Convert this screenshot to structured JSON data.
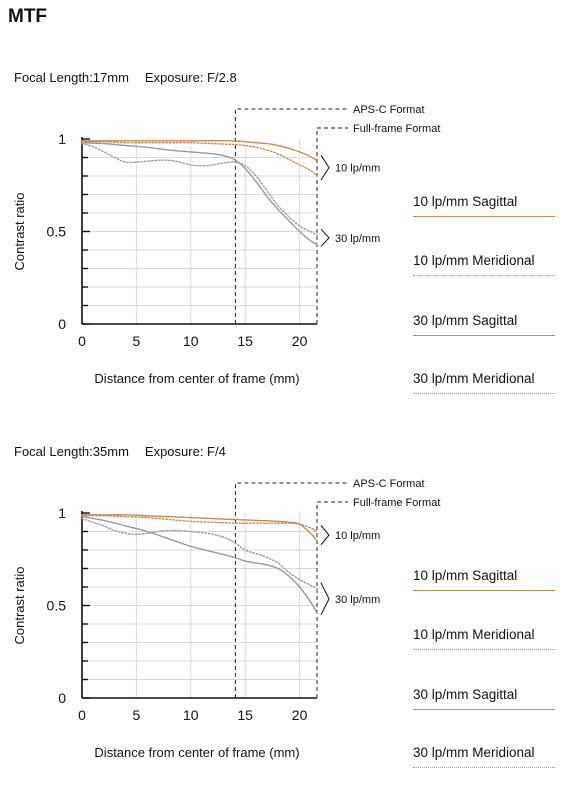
{
  "title": "MTF",
  "chart_data": [
    {
      "type": "line",
      "focal_label": "Focal Length:17mm",
      "exposure_label": "Exposure: F/2.8",
      "xlabel": "Distance from center of frame (mm)",
      "ylabel": "Contrast ratio",
      "xlim": [
        0,
        21.6
      ],
      "ylim": [
        0,
        1
      ],
      "x_ticks": [
        "0",
        "5",
        "10",
        "15",
        "20"
      ],
      "y_ticks": [
        "1",
        "0.5",
        "0"
      ],
      "grid": true,
      "aps_c": {
        "label": "APS-C Format",
        "x": 14.1
      },
      "full_frame": {
        "label": "Full-frame Format",
        "x": 21.6
      },
      "freq_labels": {
        "f10": "10 lp/mm",
        "f30": "30 lp/mm"
      },
      "series": [
        {
          "name": "10 lp/mm Sagittal",
          "x": [
            0,
            2,
            4,
            6,
            8,
            10,
            12,
            14,
            16,
            17,
            18,
            19,
            20,
            21,
            21.6
          ],
          "values": [
            0.99,
            0.99,
            0.99,
            0.99,
            0.99,
            0.99,
            0.99,
            0.99,
            0.98,
            0.975,
            0.965,
            0.95,
            0.93,
            0.905,
            0.88
          ]
        },
        {
          "name": "10 lp/mm Meridional",
          "x": [
            0,
            2,
            4,
            6,
            8,
            10,
            12,
            14,
            15,
            16,
            17,
            18,
            19,
            20,
            21,
            21.6
          ],
          "values": [
            0.985,
            0.985,
            0.98,
            0.98,
            0.98,
            0.98,
            0.975,
            0.97,
            0.965,
            0.955,
            0.94,
            0.92,
            0.89,
            0.86,
            0.83,
            0.8
          ]
        },
        {
          "name": "30 lp/mm Sagittal",
          "x": [
            0,
            2,
            4,
            6,
            8,
            10,
            12,
            13,
            14,
            15,
            16,
            17,
            18,
            19,
            20,
            21,
            21.6
          ],
          "values": [
            0.98,
            0.975,
            0.965,
            0.955,
            0.94,
            0.93,
            0.92,
            0.91,
            0.89,
            0.84,
            0.77,
            0.69,
            0.62,
            0.56,
            0.5,
            0.45,
            0.43
          ]
        },
        {
          "name": "30 lp/mm Meridional",
          "x": [
            0,
            1,
            2,
            3,
            4,
            5,
            6,
            7,
            8,
            9,
            10,
            11,
            12,
            13,
            14,
            15,
            16,
            17,
            18,
            19,
            20,
            21,
            21.6
          ],
          "values": [
            0.975,
            0.96,
            0.93,
            0.9,
            0.875,
            0.875,
            0.88,
            0.885,
            0.885,
            0.875,
            0.86,
            0.855,
            0.86,
            0.87,
            0.875,
            0.855,
            0.8,
            0.72,
            0.64,
            0.58,
            0.53,
            0.5,
            0.48
          ]
        }
      ]
    },
    {
      "type": "line",
      "focal_label": "Focal Length:35mm",
      "exposure_label": "Exposure: F/4",
      "xlabel": "Distance from center of frame (mm)",
      "ylabel": "Contrast ratio",
      "xlim": [
        0,
        21.6
      ],
      "ylim": [
        0,
        1
      ],
      "x_ticks": [
        "0",
        "5",
        "10",
        "15",
        "20"
      ],
      "y_ticks": [
        "1",
        "0.5",
        "0"
      ],
      "grid": true,
      "aps_c": {
        "label": "APS-C Format",
        "x": 14.1
      },
      "full_frame": {
        "label": "Full-frame Format",
        "x": 21.6
      },
      "freq_labels": {
        "f10": "10 lp/mm",
        "f30": "30 lp/mm"
      },
      "series": [
        {
          "name": "10 lp/mm Sagittal",
          "x": [
            0,
            2,
            4,
            6,
            8,
            10,
            12,
            14,
            16,
            18,
            19,
            20,
            21,
            21.6
          ],
          "values": [
            0.99,
            0.99,
            0.99,
            0.985,
            0.98,
            0.975,
            0.97,
            0.965,
            0.96,
            0.955,
            0.95,
            0.94,
            0.89,
            0.85
          ]
        },
        {
          "name": "10 lp/mm Meridional",
          "x": [
            0,
            2,
            4,
            6,
            8,
            10,
            12,
            14,
            16,
            18,
            19,
            20,
            21,
            21.6
          ],
          "values": [
            0.985,
            0.985,
            0.98,
            0.975,
            0.965,
            0.955,
            0.95,
            0.945,
            0.945,
            0.945,
            0.945,
            0.94,
            0.92,
            0.9
          ]
        },
        {
          "name": "30 lp/mm Sagittal",
          "x": [
            0,
            2,
            4,
            6,
            8,
            10,
            12,
            14,
            15,
            16,
            17,
            18,
            19,
            20,
            21,
            21.6
          ],
          "values": [
            0.98,
            0.96,
            0.93,
            0.9,
            0.86,
            0.82,
            0.79,
            0.76,
            0.74,
            0.73,
            0.72,
            0.7,
            0.66,
            0.6,
            0.52,
            0.46
          ]
        },
        {
          "name": "30 lp/mm Meridional",
          "x": [
            0,
            1,
            2,
            3,
            4,
            5,
            6,
            7,
            8,
            9,
            10,
            11,
            12,
            13,
            14,
            15,
            16,
            17,
            18,
            19,
            20,
            21,
            21.6
          ],
          "values": [
            0.97,
            0.95,
            0.93,
            0.905,
            0.89,
            0.885,
            0.89,
            0.9,
            0.905,
            0.905,
            0.9,
            0.895,
            0.885,
            0.87,
            0.84,
            0.8,
            0.78,
            0.76,
            0.73,
            0.68,
            0.64,
            0.61,
            0.59
          ]
        }
      ]
    }
  ],
  "legend": [
    {
      "label": "10 lp/mm Sagittal",
      "color": "#c98b52",
      "style": "solid"
    },
    {
      "label": "10 lp/mm Meridional",
      "color": "#c98b52",
      "style": "dotted"
    },
    {
      "label": "30 lp/mm Sagittal",
      "color": "#9a9a9a",
      "style": "solid"
    },
    {
      "label": "30 lp/mm Meridional",
      "color": "#9a9a9a",
      "style": "dotted"
    }
  ]
}
